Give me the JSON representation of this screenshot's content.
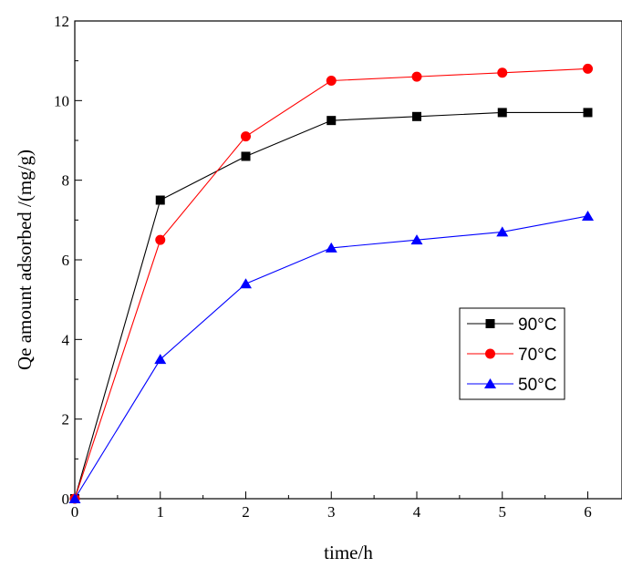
{
  "chart_data": {
    "type": "line",
    "xlabel": "time/h",
    "ylabel": "Qe amount adsorbed /(mg/g)",
    "xlim": [
      0,
      6.4
    ],
    "ylim": [
      0,
      12
    ],
    "xticks": [
      0,
      1,
      2,
      3,
      4,
      5,
      6
    ],
    "yticks": [
      0,
      2,
      4,
      6,
      8,
      10,
      12
    ],
    "grid": false,
    "legend_position": "right",
    "x": [
      0,
      1,
      2,
      3,
      4,
      5,
      6
    ],
    "series": [
      {
        "name": "90°C",
        "values": [
          0,
          7.5,
          8.6,
          9.5,
          9.6,
          9.7,
          9.7
        ],
        "color": "#000000",
        "marker": "square"
      },
      {
        "name": "70°C",
        "values": [
          0,
          6.5,
          9.1,
          10.5,
          10.6,
          10.7,
          10.8
        ],
        "color": "#ff0000",
        "marker": "circle"
      },
      {
        "name": "50°C",
        "values": [
          0,
          3.5,
          5.4,
          6.3,
          6.5,
          6.7,
          7.1
        ],
        "color": "#0000ff",
        "marker": "triangle"
      }
    ]
  }
}
